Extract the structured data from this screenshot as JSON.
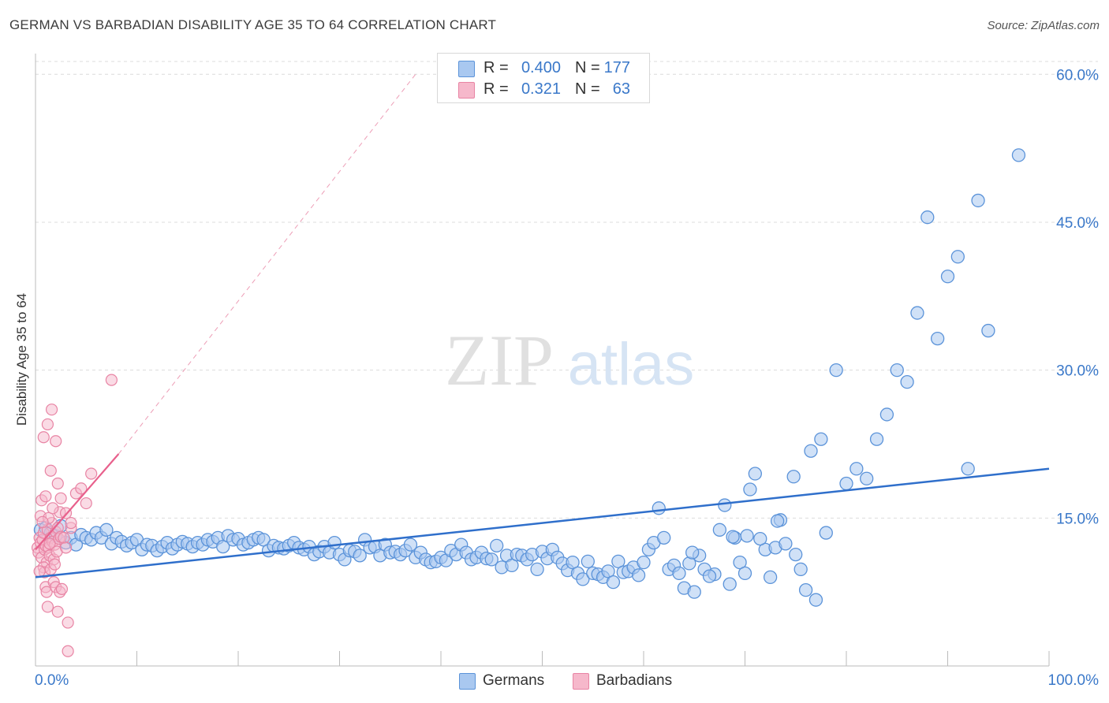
{
  "header": {
    "title": "GERMAN VS BARBADIAN DISABILITY AGE 35 TO 64 CORRELATION CHART",
    "source": "Source: ZipAtlas.com"
  },
  "watermark": {
    "zip": "ZIP",
    "atlas": "atlas"
  },
  "legend_top": {
    "rows": [
      {
        "r_label": "R =",
        "r_value": "0.400",
        "n_label": "N =",
        "n_value": "177"
      },
      {
        "r_label": "R =",
        "r_value": "0.321",
        "n_label": "N =",
        "n_value": "63"
      }
    ]
  },
  "legend_bottom": {
    "items": [
      {
        "label": "Germans"
      },
      {
        "label": "Barbadians"
      }
    ]
  },
  "colors": {
    "german_fill": "#a9c8f0",
    "german_stroke": "#5b93d9",
    "german_line": "#2f6fcb",
    "barbadian_fill": "#f6b8cb",
    "barbadian_stroke": "#e884a4",
    "barbadian_line": "#e8608c",
    "axis_text": "#3a78c9",
    "grid": "#dcdcdc"
  },
  "chart_data": {
    "type": "scatter",
    "title": "GERMAN VS BARBADIAN DISABILITY AGE 35 TO 64 CORRELATION CHART",
    "xlabel": "",
    "ylabel": "Disability Age 35 to 64",
    "xlim": [
      0,
      100
    ],
    "ylim": [
      0,
      60
    ],
    "x_tick_labels": [
      "0.0%",
      "100.0%"
    ],
    "y_ticks": [
      15,
      30,
      45,
      60
    ],
    "y_tick_labels": [
      "15.0%",
      "30.0%",
      "45.0%",
      "60.0%"
    ],
    "grid": true,
    "legend_placement": "top-center and bottom",
    "series": [
      {
        "name": "Germans",
        "R": 0.4,
        "N": 177,
        "trend": {
          "x": [
            0,
            100
          ],
          "y": [
            9.0,
            20.0
          ]
        },
        "points": [
          [
            0.5,
            13.8
          ],
          [
            1,
            14.0
          ],
          [
            1.5,
            13.5
          ],
          [
            2,
            13.2
          ],
          [
            2.5,
            14.2
          ],
          [
            3,
            12.5
          ],
          [
            3.5,
            13.0
          ],
          [
            4,
            12.3
          ],
          [
            4.5,
            13.3
          ],
          [
            5,
            13.0
          ],
          [
            5.5,
            12.8
          ],
          [
            6,
            13.5
          ],
          [
            6.5,
            13.0
          ],
          [
            7,
            13.8
          ],
          [
            7.5,
            12.4
          ],
          [
            8,
            13.0
          ],
          [
            8.5,
            12.6
          ],
          [
            9,
            12.2
          ],
          [
            9.5,
            12.5
          ],
          [
            10,
            12.8
          ],
          [
            10.5,
            11.8
          ],
          [
            11,
            12.3
          ],
          [
            11.5,
            12.2
          ],
          [
            12,
            11.7
          ],
          [
            12.5,
            12.1
          ],
          [
            13,
            12.5
          ],
          [
            13.5,
            11.9
          ],
          [
            14,
            12.3
          ],
          [
            14.5,
            12.6
          ],
          [
            15,
            12.4
          ],
          [
            15.5,
            12.1
          ],
          [
            16,
            12.5
          ],
          [
            16.5,
            12.3
          ],
          [
            17,
            12.8
          ],
          [
            17.5,
            12.6
          ],
          [
            18,
            13.0
          ],
          [
            18.5,
            12.1
          ],
          [
            19,
            13.2
          ],
          [
            19.5,
            12.8
          ],
          [
            20,
            12.9
          ],
          [
            20.5,
            12.3
          ],
          [
            21,
            12.5
          ],
          [
            21.5,
            12.8
          ],
          [
            22,
            13.0
          ],
          [
            22.5,
            12.8
          ],
          [
            23,
            11.7
          ],
          [
            23.5,
            12.2
          ],
          [
            24,
            12.0
          ],
          [
            24.5,
            11.9
          ],
          [
            25,
            12.2
          ],
          [
            25.5,
            12.5
          ],
          [
            26,
            12.0
          ],
          [
            26.5,
            11.8
          ],
          [
            27,
            12.1
          ],
          [
            27.5,
            11.3
          ],
          [
            28,
            11.6
          ],
          [
            28.5,
            12.1
          ],
          [
            29,
            11.5
          ],
          [
            29.5,
            12.5
          ],
          [
            30,
            11.3
          ],
          [
            30.5,
            10.8
          ],
          [
            31,
            11.7
          ],
          [
            31.5,
            11.6
          ],
          [
            32,
            11.2
          ],
          [
            32.5,
            12.8
          ],
          [
            33,
            12.0
          ],
          [
            33.5,
            12.1
          ],
          [
            34,
            11.2
          ],
          [
            34.5,
            12.3
          ],
          [
            35,
            11.5
          ],
          [
            35.5,
            11.6
          ],
          [
            36,
            11.3
          ],
          [
            36.5,
            11.7
          ],
          [
            37,
            12.3
          ],
          [
            37.5,
            11.0
          ],
          [
            38,
            11.5
          ],
          [
            38.5,
            10.8
          ],
          [
            39,
            10.5
          ],
          [
            39.5,
            10.6
          ],
          [
            40,
            11.0
          ],
          [
            40.5,
            10.7
          ],
          [
            41,
            11.7
          ],
          [
            41.5,
            11.3
          ],
          [
            42,
            12.3
          ],
          [
            42.5,
            11.5
          ],
          [
            43,
            10.8
          ],
          [
            43.5,
            11.0
          ],
          [
            44,
            11.5
          ],
          [
            44.5,
            10.9
          ],
          [
            45,
            10.8
          ],
          [
            45.5,
            12.2
          ],
          [
            46,
            10.0
          ],
          [
            46.5,
            11.2
          ],
          [
            47,
            10.2
          ],
          [
            47.5,
            11.3
          ],
          [
            48,
            11.2
          ],
          [
            48.5,
            10.8
          ],
          [
            49,
            11.3
          ],
          [
            49.5,
            9.8
          ],
          [
            50,
            11.6
          ],
          [
            50.5,
            10.9
          ],
          [
            51,
            11.8
          ],
          [
            51.5,
            11.0
          ],
          [
            52,
            10.4
          ],
          [
            52.5,
            9.7
          ],
          [
            53,
            10.5
          ],
          [
            53.5,
            9.4
          ],
          [
            54,
            8.8
          ],
          [
            54.5,
            10.6
          ],
          [
            55,
            9.4
          ],
          [
            55.5,
            9.3
          ],
          [
            56,
            9.0
          ],
          [
            56.5,
            9.6
          ],
          [
            57,
            8.5
          ],
          [
            57.5,
            10.6
          ],
          [
            58,
            9.5
          ],
          [
            58.5,
            9.6
          ],
          [
            59,
            10.0
          ],
          [
            59.5,
            9.2
          ],
          [
            60,
            10.5
          ],
          [
            60.5,
            11.8
          ],
          [
            61,
            12.5
          ],
          [
            61.5,
            16.0
          ],
          [
            62,
            13.0
          ],
          [
            62.5,
            9.8
          ],
          [
            63,
            10.2
          ],
          [
            63.5,
            9.4
          ],
          [
            64,
            7.9
          ],
          [
            64.5,
            10.4
          ],
          [
            65,
            7.5
          ],
          [
            65.5,
            11.2
          ],
          [
            66,
            9.8
          ],
          [
            67,
            9.3
          ],
          [
            67.5,
            13.8
          ],
          [
            68,
            16.3
          ],
          [
            68.5,
            8.3
          ],
          [
            69,
            13.0
          ],
          [
            69.5,
            10.5
          ],
          [
            70,
            9.4
          ],
          [
            70.5,
            17.9
          ],
          [
            71,
            19.5
          ],
          [
            72,
            11.8
          ],
          [
            73,
            12.0
          ],
          [
            73.5,
            14.8
          ],
          [
            74,
            12.4
          ],
          [
            75,
            11.3
          ],
          [
            76,
            7.7
          ],
          [
            77,
            6.7
          ],
          [
            78,
            13.5
          ],
          [
            79,
            30.0
          ],
          [
            80,
            18.5
          ],
          [
            81,
            20.0
          ],
          [
            82,
            19.0
          ],
          [
            83,
            23.0
          ],
          [
            84,
            25.5
          ],
          [
            85,
            30.0
          ],
          [
            86,
            28.8
          ],
          [
            87,
            35.8
          ],
          [
            88,
            45.5
          ],
          [
            89,
            33.2
          ],
          [
            90,
            39.5
          ],
          [
            91,
            41.5
          ],
          [
            92,
            20.0
          ],
          [
            93,
            47.2
          ],
          [
            94,
            34.0
          ],
          [
            97,
            51.8
          ],
          [
            72.5,
            9.0
          ],
          [
            73.2,
            14.7
          ],
          [
            74.8,
            19.2
          ],
          [
            64.8,
            11.5
          ],
          [
            66.5,
            9.1
          ],
          [
            68.8,
            13.1
          ],
          [
            70.2,
            13.2
          ],
          [
            71.5,
            12.9
          ],
          [
            75.5,
            9.8
          ],
          [
            76.5,
            21.8
          ],
          [
            77.5,
            23.0
          ]
        ]
      },
      {
        "name": "Barbadians",
        "R": 0.321,
        "N": 63,
        "trend": {
          "x": [
            0,
            8.2
          ],
          "y": [
            11.8,
            21.5
          ]
        },
        "trend_extension": {
          "x": [
            8.2,
            37.5
          ],
          "y": [
            21.5,
            60.0
          ]
        },
        "points": [
          [
            0.2,
            12.0
          ],
          [
            0.3,
            11.5
          ],
          [
            0.4,
            13.0
          ],
          [
            0.5,
            12.5
          ],
          [
            0.6,
            11.0
          ],
          [
            0.7,
            12.8
          ],
          [
            0.8,
            13.5
          ],
          [
            0.9,
            11.8
          ],
          [
            1.0,
            12.2
          ],
          [
            1.1,
            10.5
          ],
          [
            1.2,
            13.8
          ],
          [
            1.3,
            12.0
          ],
          [
            1.4,
            11.2
          ],
          [
            1.5,
            13.0
          ],
          [
            1.6,
            14.5
          ],
          [
            1.7,
            12.6
          ],
          [
            1.8,
            10.8
          ],
          [
            1.9,
            12.3
          ],
          [
            2.0,
            13.6
          ],
          [
            2.1,
            11.6
          ],
          [
            2.2,
            14.0
          ],
          [
            2.3,
            12.9
          ],
          [
            2.4,
            15.6
          ],
          [
            2.5,
            13.1
          ],
          [
            0.5,
            15.2
          ],
          [
            0.6,
            16.8
          ],
          [
            0.8,
            10.0
          ],
          [
            0.9,
            9.5
          ],
          [
            1.0,
            8.0
          ],
          [
            1.1,
            7.5
          ],
          [
            1.2,
            6.0
          ],
          [
            1.5,
            9.8
          ],
          [
            1.8,
            8.5
          ],
          [
            2.0,
            8.0
          ],
          [
            2.2,
            5.5
          ],
          [
            2.4,
            7.5
          ],
          [
            0.8,
            23.2
          ],
          [
            1.2,
            24.5
          ],
          [
            1.6,
            26.0
          ],
          [
            2.0,
            22.8
          ],
          [
            1.5,
            19.8
          ],
          [
            2.2,
            18.5
          ],
          [
            2.5,
            17.0
          ],
          [
            3.0,
            15.5
          ],
          [
            3.5,
            14.0
          ],
          [
            4.0,
            17.5
          ],
          [
            4.5,
            18.0
          ],
          [
            5.0,
            16.5
          ],
          [
            5.5,
            19.5
          ],
          [
            7.5,
            29.0
          ],
          [
            3.2,
            4.4
          ],
          [
            3.2,
            1.5
          ],
          [
            1.0,
            17.2
          ],
          [
            1.3,
            15.0
          ],
          [
            1.7,
            16.0
          ],
          [
            2.8,
            13.0
          ],
          [
            3.0,
            12.0
          ],
          [
            3.5,
            14.5
          ],
          [
            1.9,
            10.3
          ],
          [
            2.6,
            7.8
          ],
          [
            0.4,
            9.6
          ],
          [
            0.7,
            14.6
          ],
          [
            1.4,
            12.4
          ]
        ]
      }
    ]
  }
}
